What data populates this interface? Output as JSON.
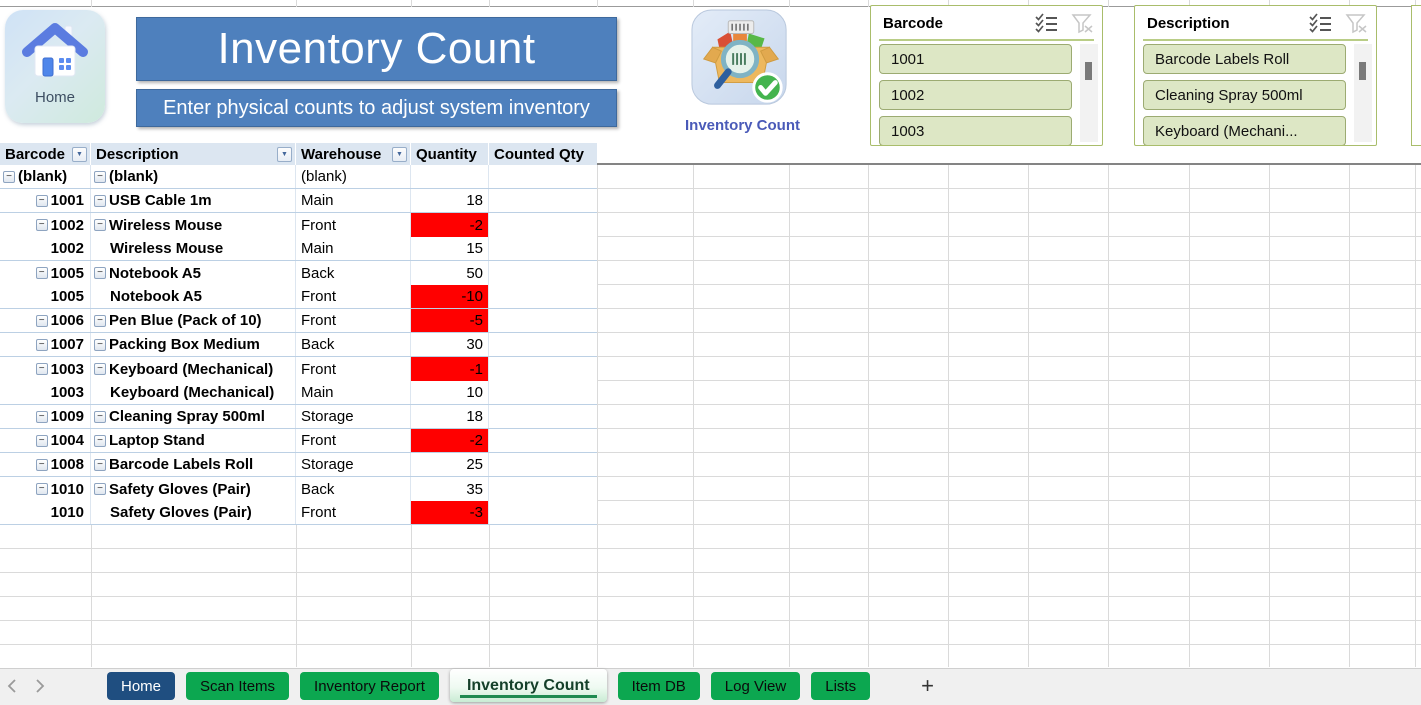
{
  "header": {
    "home_button_label": "Home",
    "title": "Inventory Count",
    "subtitle": "Enter physical counts to adjust system inventory",
    "icon_label": "Inventory Count"
  },
  "icons": {
    "collapse": "−",
    "dropdown": "▼",
    "plus": "+",
    "multi_select": "multi-select-icon",
    "clear_filter": "clear-filter-icon",
    "home": "house-icon",
    "inventory_count": "box-magnifier-check-icon"
  },
  "slicers": [
    {
      "title": "Barcode",
      "items": [
        "1001",
        "1002",
        "1003"
      ]
    },
    {
      "title": "Description",
      "items": [
        "Barcode Labels Roll",
        "Cleaning Spray 500ml",
        "Keyboard (Mechani..."
      ]
    }
  ],
  "pivot": {
    "columns": [
      "Barcode",
      "Description",
      "Warehouse",
      "Quantity",
      "Counted Qty"
    ],
    "rows": [
      {
        "barcode": "(blank)",
        "barcode_button": true,
        "description": "(blank)",
        "description_button": true,
        "warehouse": "(blank)",
        "quantity": "",
        "negative": false,
        "group_end": true,
        "barcode_left": true
      },
      {
        "barcode": "1001",
        "barcode_button": true,
        "description": "USB Cable 1m",
        "description_button": true,
        "warehouse": "Main",
        "quantity": "18",
        "negative": false,
        "group_end": true,
        "barcode_left": false
      },
      {
        "barcode": "1002",
        "barcode_button": true,
        "description": "Wireless Mouse",
        "description_button": true,
        "warehouse": "Front",
        "quantity": "-2",
        "negative": true,
        "group_end": false,
        "barcode_left": false
      },
      {
        "barcode": "1002",
        "barcode_button": false,
        "description": "Wireless Mouse",
        "description_button": false,
        "warehouse": "Main",
        "quantity": "15",
        "negative": false,
        "group_end": true,
        "barcode_left": false
      },
      {
        "barcode": "1005",
        "barcode_button": true,
        "description": "Notebook A5",
        "description_button": true,
        "warehouse": "Back",
        "quantity": "50",
        "negative": false,
        "group_end": false,
        "barcode_left": false
      },
      {
        "barcode": "1005",
        "barcode_button": false,
        "description": "Notebook A5",
        "description_button": false,
        "warehouse": "Front",
        "quantity": "-10",
        "negative": true,
        "group_end": true,
        "barcode_left": false
      },
      {
        "barcode": "1006",
        "barcode_button": true,
        "description": "Pen Blue (Pack of 10)",
        "description_button": true,
        "warehouse": "Front",
        "quantity": "-5",
        "negative": true,
        "group_end": true,
        "barcode_left": false
      },
      {
        "barcode": "1007",
        "barcode_button": true,
        "description": "Packing Box Medium",
        "description_button": true,
        "warehouse": "Back",
        "quantity": "30",
        "negative": false,
        "group_end": true,
        "barcode_left": false
      },
      {
        "barcode": "1003",
        "barcode_button": true,
        "description": "Keyboard (Mechanical)",
        "description_button": true,
        "warehouse": "Front",
        "quantity": "-1",
        "negative": true,
        "group_end": false,
        "barcode_left": false
      },
      {
        "barcode": "1003",
        "barcode_button": false,
        "description": "Keyboard (Mechanical)",
        "description_button": false,
        "warehouse": "Main",
        "quantity": "10",
        "negative": false,
        "group_end": true,
        "barcode_left": false
      },
      {
        "barcode": "1009",
        "barcode_button": true,
        "description": "Cleaning Spray 500ml",
        "description_button": true,
        "warehouse": "Storage",
        "quantity": "18",
        "negative": false,
        "group_end": true,
        "barcode_left": false
      },
      {
        "barcode": "1004",
        "barcode_button": true,
        "description": "Laptop Stand",
        "description_button": true,
        "warehouse": "Front",
        "quantity": "-2",
        "negative": true,
        "group_end": true,
        "barcode_left": false
      },
      {
        "barcode": "1008",
        "barcode_button": true,
        "description": "Barcode Labels Roll",
        "description_button": true,
        "warehouse": "Storage",
        "quantity": "25",
        "negative": false,
        "group_end": true,
        "barcode_left": false
      },
      {
        "barcode": "1010",
        "barcode_button": true,
        "description": "Safety Gloves (Pair)",
        "description_button": true,
        "warehouse": "Back",
        "quantity": "35",
        "negative": false,
        "group_end": false,
        "barcode_left": false
      },
      {
        "barcode": "1010",
        "barcode_button": false,
        "description": "Safety Gloves (Pair)",
        "description_button": false,
        "warehouse": "Front",
        "quantity": "-3",
        "negative": true,
        "group_end": true,
        "barcode_left": false
      }
    ]
  },
  "sheet_tab_bar": {
    "tabs": [
      {
        "label": "Home",
        "style": "home"
      },
      {
        "label": "Scan Items",
        "style": "green"
      },
      {
        "label": "Inventory Report",
        "style": "green"
      },
      {
        "label": "Inventory Count",
        "style": "active"
      },
      {
        "label": "Item DB",
        "style": "green"
      },
      {
        "label": "Log View",
        "style": "green"
      },
      {
        "label": "Lists",
        "style": "green"
      }
    ],
    "new_sheet_label": "+"
  },
  "colors": {
    "banner_blue": "#4e80bd",
    "negative_fill_red": "#ff0000",
    "slicer_item_green": "#dde7c5",
    "slicer_border_olive": "#a9bd6b",
    "sheet_tab_green": "#0ca750",
    "home_tab_blue": "#1f4e80",
    "active_tab_underline_green": "#1e8a50",
    "icon_label_blue": "#4a5ab8",
    "header_fill_blue": "#dce6f1"
  }
}
